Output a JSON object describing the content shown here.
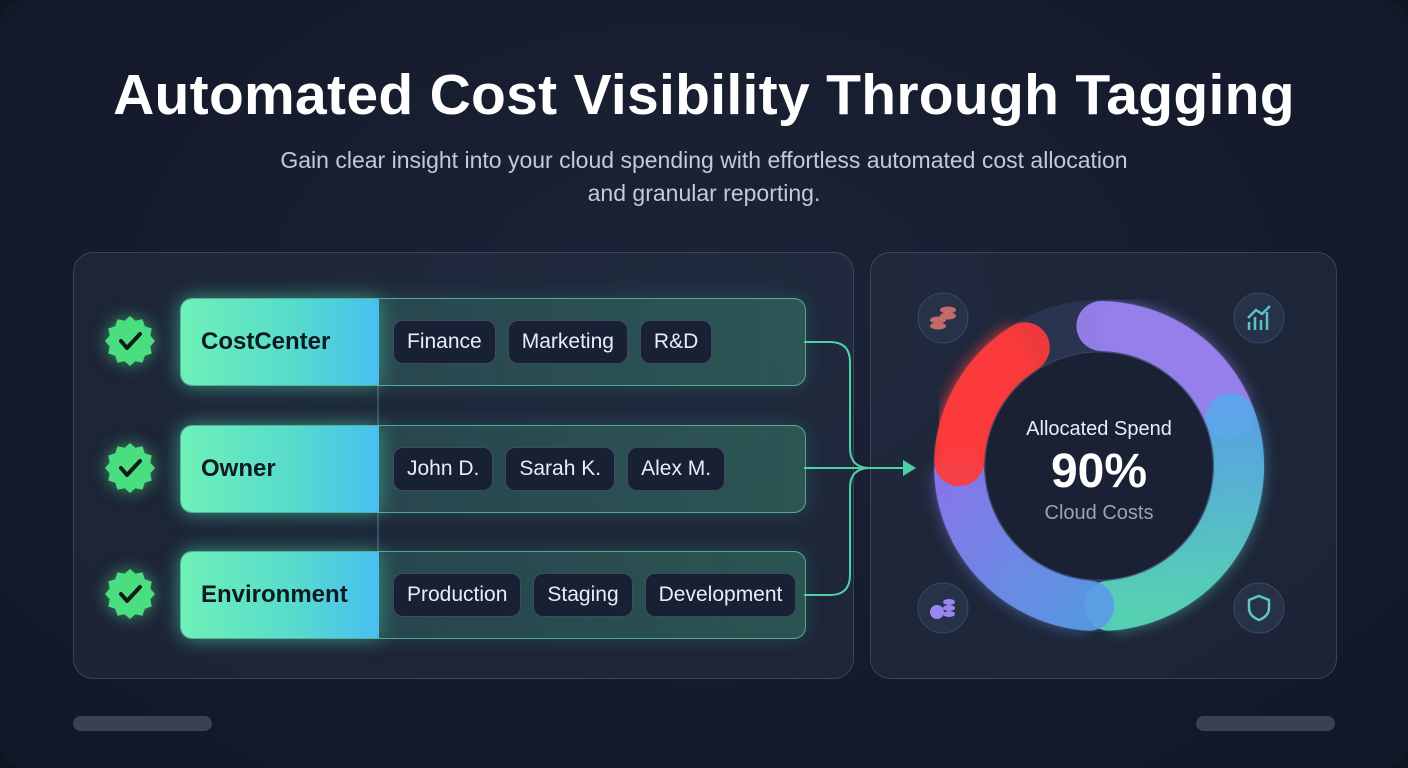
{
  "header": {
    "title": "Automated Cost Visibility Through Tagging",
    "subtitle": "Gain clear insight into your cloud spending with effortless automated cost allocation and granular reporting."
  },
  "tag_rows": [
    {
      "key": "CostCenter",
      "values": [
        "Finance",
        "Marketing",
        "R&D"
      ]
    },
    {
      "key": "Owner",
      "values": [
        "John D.",
        "Sarah K.",
        "Alex M."
      ]
    },
    {
      "key": "Environment",
      "values": [
        "Production",
        "Staging",
        "Development"
      ]
    }
  ],
  "summary": {
    "label": "Allocated Spend",
    "value": "90%",
    "caption": "Cloud Costs"
  }
}
